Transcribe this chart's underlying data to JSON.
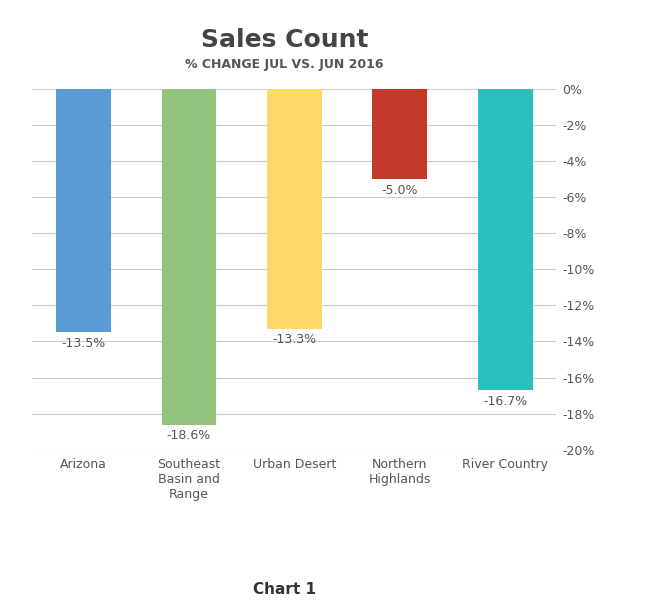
{
  "title": "Sales Count",
  "subtitle": "% CHANGE JUL VS. JUN 2016",
  "footer": "Chart 1",
  "categories": [
    "Arizona",
    "Southeast\nBasin and\nRange",
    "Urban Desert",
    "Northern\nHighlands",
    "River Country"
  ],
  "values": [
    -13.5,
    -18.6,
    -13.3,
    -5.0,
    -16.7
  ],
  "bar_colors": [
    "#5B9BD5",
    "#93C47D",
    "#FFD966",
    "#C0392B",
    "#2BBFBF"
  ],
  "ylim": [
    -20,
    0
  ],
  "yticks": [
    0,
    -2,
    -4,
    -6,
    -8,
    -10,
    -12,
    -14,
    -16,
    -18,
    -20
  ],
  "ytick_labels": [
    "0%",
    "-2%",
    "-4%",
    "-6%",
    "-8%",
    "-10%",
    "-12%",
    "-14%",
    "-16%",
    "-18%",
    "-20%"
  ],
  "title_fontsize": 18,
  "subtitle_fontsize": 9,
  "tick_fontsize": 9,
  "footer_fontsize": 11,
  "bar_label_fontsize": 9,
  "background_color": "#FFFFFF",
  "grid_color": "#CCCCCC",
  "text_color": "#555555"
}
